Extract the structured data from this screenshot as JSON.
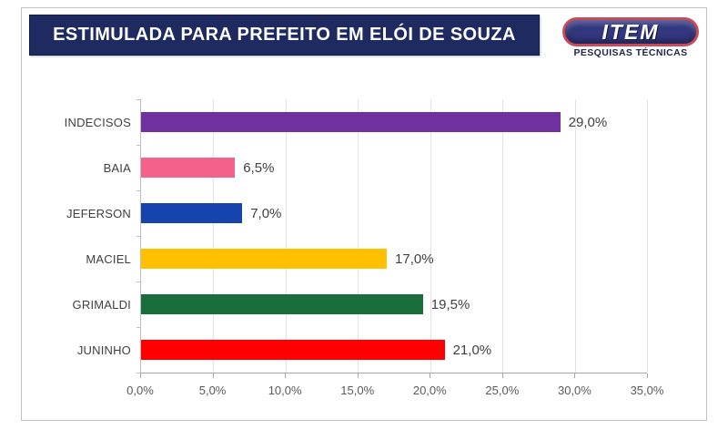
{
  "header": {
    "title": "ESTIMULADA PARA PREFEITO EM ELÓI DE SOUZA",
    "banner_bg": "#1E2A60",
    "logo": {
      "name": "ITEM",
      "subtitle": "PESQUISAS TÉCNICAS",
      "pill_bg": "#32377E",
      "pill_border": "#C84B5A"
    }
  },
  "chart_data": {
    "type": "bar",
    "orientation": "horizontal",
    "title": "ESTIMULADA PARA PREFEITO EM ELÓI DE SOUZA",
    "categories": [
      "INDECISOS",
      "BAIA",
      "JEFERSON",
      "MACIEL",
      "GRIMALDI",
      "JUNINHO"
    ],
    "values": [
      29.0,
      6.5,
      7.0,
      17.0,
      19.5,
      21.0
    ],
    "value_labels": [
      "29,0%",
      "6,5%",
      "7,0%",
      "17,0%",
      "19,5%",
      "21,0%"
    ],
    "colors": [
      "#7030A0",
      "#F4628C",
      "#1743AE",
      "#FFC000",
      "#1A6E3C",
      "#FE0000"
    ],
    "x_ticks": [
      "0,0%",
      "5,0%",
      "10,0%",
      "15,0%",
      "20,0%",
      "25,0%",
      "30,0%",
      "35,0%"
    ],
    "x_tick_values": [
      0,
      5,
      10,
      15,
      20,
      25,
      30,
      35
    ],
    "xlim": [
      0,
      35
    ],
    "grid": true,
    "legend": "none"
  }
}
